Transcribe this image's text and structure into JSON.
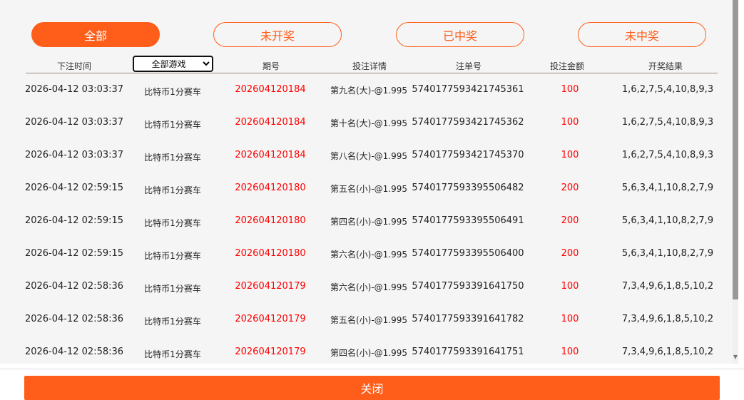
{
  "tabs": [
    {
      "label": "全部",
      "active": true
    },
    {
      "label": "未开奖"
    },
    {
      "label": "已中奖"
    },
    {
      "label": "未中奖"
    }
  ],
  "headers": {
    "time": "下注时间",
    "game_select": "全部游戏",
    "issue": "期号",
    "detail": "投注详情",
    "order": "注单号",
    "amount": "投注金额",
    "result": "开奖结果"
  },
  "rows": [
    {
      "time": "2026-04-12 03:03:37",
      "game": "比特币1分赛车",
      "issue": "202604120184",
      "detail": "第九名(大)-@1.995",
      "order": "5740177593421745361",
      "amount": "100",
      "result": "1,6,2,7,5,4,10,8,9,3"
    },
    {
      "time": "2026-04-12 03:03:37",
      "game": "比特币1分赛车",
      "issue": "202604120184",
      "detail": "第十名(大)-@1.995",
      "order": "5740177593421745362",
      "amount": "100",
      "result": "1,6,2,7,5,4,10,8,9,3"
    },
    {
      "time": "2026-04-12 03:03:37",
      "game": "比特币1分赛车",
      "issue": "202604120184",
      "detail": "第八名(大)-@1.995",
      "order": "5740177593421745370",
      "amount": "100",
      "result": "1,6,2,7,5,4,10,8,9,3"
    },
    {
      "time": "2026-04-12 02:59:15",
      "game": "比特币1分赛车",
      "issue": "202604120180",
      "detail": "第五名(小)-@1.995",
      "order": "5740177593395506482",
      "amount": "200",
      "result": "5,6,3,4,1,10,8,2,7,9"
    },
    {
      "time": "2026-04-12 02:59:15",
      "game": "比特币1分赛车",
      "issue": "202604120180",
      "detail": "第四名(小)-@1.995",
      "order": "5740177593395506491",
      "amount": "200",
      "result": "5,6,3,4,1,10,8,2,7,9"
    },
    {
      "time": "2026-04-12 02:59:15",
      "game": "比特币1分赛车",
      "issue": "202604120180",
      "detail": "第六名(小)-@1.995",
      "order": "5740177593395506400",
      "amount": "200",
      "result": "5,6,3,4,1,10,8,2,7,9"
    },
    {
      "time": "2026-04-12 02:58:36",
      "game": "比特币1分赛车",
      "issue": "202604120179",
      "detail": "第六名(小)-@1.995",
      "order": "5740177593391641750",
      "amount": "100",
      "result": "7,3,4,9,6,1,8,5,10,2"
    },
    {
      "time": "2026-04-12 02:58:36",
      "game": "比特币1分赛车",
      "issue": "202604120179",
      "detail": "第五名(小)-@1.995",
      "order": "5740177593391641782",
      "amount": "100",
      "result": "7,3,4,9,6,1,8,5,10,2"
    },
    {
      "time": "2026-04-12 02:58:36",
      "game": "比特币1分赛车",
      "issue": "202604120179",
      "detail": "第四名(小)-@1.995",
      "order": "5740177593391641751",
      "amount": "100",
      "result": "7,3,4,9,6,1,8,5,10,2"
    }
  ],
  "close_label": "关闭",
  "colors": {
    "accent": "#ff5e1a",
    "issue": "#ff0000",
    "amount": "#ff0000"
  }
}
